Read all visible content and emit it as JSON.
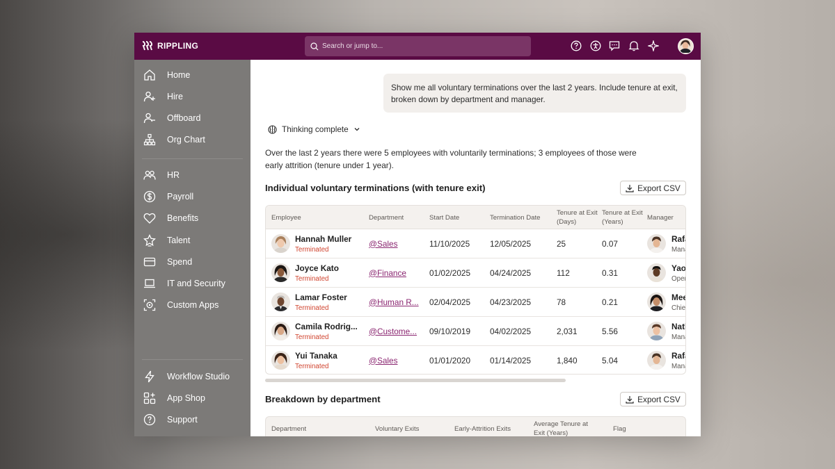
{
  "app": {
    "name": "RIPPLING"
  },
  "search": {
    "placeholder": "Search or jump to..."
  },
  "top_icons": [
    "help-icon",
    "accessibility-icon",
    "chat-icon",
    "bell-icon",
    "sparkle-icon"
  ],
  "sidebar": {
    "items": [
      {
        "label": "Home",
        "icon": "home-icon"
      },
      {
        "label": "Hire",
        "icon": "hire-icon"
      },
      {
        "label": "Offboard",
        "icon": "offboard-icon"
      },
      {
        "label": "Org Chart",
        "icon": "org-chart-icon"
      },
      {
        "label": "HR",
        "icon": "hr-icon"
      },
      {
        "label": "Payroll",
        "icon": "payroll-icon"
      },
      {
        "label": "Benefits",
        "icon": "heart-icon"
      },
      {
        "label": "Talent",
        "icon": "star-icon"
      },
      {
        "label": "Spend",
        "icon": "card-icon"
      },
      {
        "label": "IT and Security",
        "icon": "laptop-icon"
      },
      {
        "label": "Custom Apps",
        "icon": "custom-apps-icon"
      },
      {
        "label": "Workflow Studio",
        "icon": "lightning-icon"
      },
      {
        "label": "App Shop",
        "icon": "app-shop-icon"
      },
      {
        "label": "Support",
        "icon": "support-icon"
      }
    ]
  },
  "chat": {
    "user_message": "Show me all voluntary terminations over the last 2 years. Include tenure at exit, broken down by department and manager.",
    "thinking_label": "Thinking complete",
    "summary": "Over the last 2 years there were 5 employees with voluntarily terminations; 3 employees of those were early attrition (tenure under 1 year)."
  },
  "terminations": {
    "title": "Individual voluntary terminations (with tenure exit)",
    "export_label": "Export CSV",
    "headers": {
      "employee": "Employee",
      "department": "Department",
      "start": "Start Date",
      "termination": "Termination Date",
      "tenure_days": "Tenure at Exit (Days)",
      "tenure_years": "Tenure at Exit (Years)",
      "manager": "Manager"
    },
    "rows": [
      {
        "name": "Hannah Muller",
        "status": "Terminated",
        "dept": "@Sales",
        "start": "11/10/2025",
        "end": "12/05/2025",
        "days": "25",
        "years": "0.07",
        "mgr": "Rafa",
        "mgr_role": "Mana"
      },
      {
        "name": "Joyce Kato",
        "status": "Terminated",
        "dept": "@Finance",
        "start": "01/02/2025",
        "end": "04/24/2025",
        "days": "112",
        "years": "0.31",
        "mgr": "Yao",
        "mgr_role": "Oper"
      },
      {
        "name": "Lamar Foster",
        "status": "Terminated",
        "dept": "@Human R...",
        "start": "02/04/2025",
        "end": "04/23/2025",
        "days": "78",
        "years": "0.21",
        "mgr": "Mee",
        "mgr_role": "Chie"
      },
      {
        "name": "Camila Rodrig...",
        "status": "Terminated",
        "dept": "@Custome...",
        "start": "09/10/2019",
        "end": "04/02/2025",
        "days": "2,031",
        "years": "5.56",
        "mgr": "Nath",
        "mgr_role": "Mana"
      },
      {
        "name": "Yui Tanaka",
        "status": "Terminated",
        "dept": "@Sales",
        "start": "01/01/2020",
        "end": "01/14/2025",
        "days": "1,840",
        "years": "5.04",
        "mgr": "Rafa",
        "mgr_role": "Mana"
      }
    ]
  },
  "department_breakdown": {
    "title": "Breakdown by department",
    "export_label": "Export CSV",
    "headers": {
      "department": "Department",
      "voluntary_exits": "Voluntary Exits",
      "early_exits": "Early-Attrition Exits",
      "avg_tenure": "Average Tenure at Exit (Years)",
      "flag": "Flag"
    }
  },
  "colors": {
    "topbar": "#5a0b44",
    "sidebar": "#7c7a78",
    "terminated": "#d0432e",
    "link": "#8a2570"
  }
}
